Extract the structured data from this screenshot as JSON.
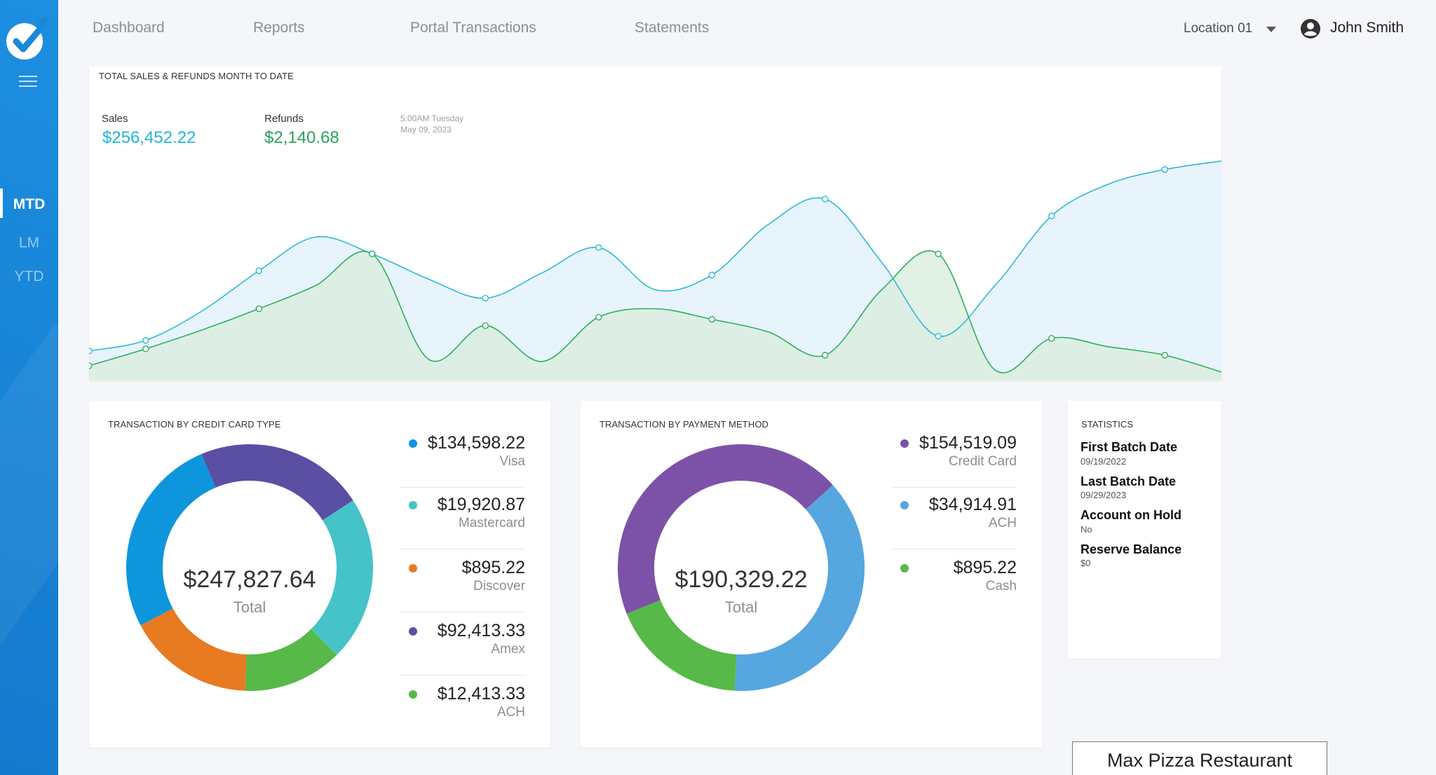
{
  "nav": {
    "items": [
      "Dashboard",
      "Reports",
      "Portal Transactions",
      "Statements"
    ],
    "location": "Location 01",
    "user_name": "John Smith"
  },
  "sidebar": {
    "periods": [
      "MTD",
      "LM",
      "YTD"
    ],
    "active_period": "MTD"
  },
  "sales_card": {
    "title": "TOTAL SALES & REFUNDS MONTH TO DATE",
    "sales_label": "Sales",
    "sales_value": "$256,452.22",
    "refunds_label": "Refunds",
    "refunds_value": "$2,140.68",
    "timestamp_line1": "5:00AM Tuesday",
    "timestamp_line2": "May 09, 2023"
  },
  "chart_data": {
    "type": "area",
    "title": "TOTAL SALES & REFUNDS MONTH TO DATE",
    "xlabel": "",
    "ylabel": "",
    "grid": false,
    "x": [
      0,
      1,
      2,
      3,
      4,
      5,
      6,
      7,
      8,
      9,
      10,
      11,
      12,
      13,
      14,
      15,
      16,
      17,
      18,
      19,
      20
    ],
    "series": [
      {
        "name": "Sales",
        "color": "#2bb9d9",
        "fill": "#e4f2fa",
        "values": [
          14,
          19,
          33,
          52,
          68,
          60,
          48,
          39,
          51,
          63,
          43,
          50,
          74,
          86,
          56,
          21,
          45,
          78,
          93,
          100,
          104
        ]
      },
      {
        "name": "Refunds",
        "color": "#2fae5f",
        "fill": "#d9eedf",
        "values": [
          7,
          15,
          24,
          34,
          45,
          60,
          10,
          26,
          9,
          30,
          34,
          29,
          23,
          12,
          43,
          60,
          5,
          20,
          16,
          12,
          4
        ]
      }
    ],
    "highlight_point": {
      "series": "Sales",
      "index": 8
    }
  },
  "credit_card_card": {
    "title": "TRANSACTION BY CREDIT CARD TYPE",
    "total": "$247,827.64",
    "total_label": "Total",
    "items": [
      {
        "amount": "$134,598.22",
        "label": "Visa",
        "color": "#0e96dc"
      },
      {
        "amount": "$19,920.87",
        "label": "Mastercard",
        "color": "#45c3c8"
      },
      {
        "amount": "$895.22",
        "label": "Discover",
        "color": "#e87a22"
      },
      {
        "amount": "$92,413.33",
        "label": "Amex",
        "color": "#5a4fa2"
      },
      {
        "amount": "$12,413.33",
        "label": "ACH",
        "color": "#57b948"
      }
    ],
    "segments": [
      {
        "name": "Visa",
        "color": "#0e96dc",
        "start": 242,
        "end": 337
      },
      {
        "name": "Amex",
        "color": "#5a4fa2",
        "start": 337,
        "end": 417
      },
      {
        "name": "Mastercard",
        "color": "#45c3c8",
        "start": 417,
        "end": 495
      },
      {
        "name": "ACH",
        "color": "#57b948",
        "start": 495,
        "end": 542
      },
      {
        "name": "Discover",
        "color": "#e87a22",
        "start": 542,
        "end": 602
      }
    ]
  },
  "payment_method_card": {
    "title": "TRANSACTION BY PAYMENT METHOD",
    "total": "$190,329.22",
    "total_label": "Total",
    "items": [
      {
        "amount": "$154,519.09",
        "label": "Credit Card",
        "color": "#7b52a8"
      },
      {
        "amount": "$34,914.91",
        "label": "ACH",
        "color": "#56a6df"
      },
      {
        "amount": "$895.22",
        "label": "Cash",
        "color": "#57b948"
      }
    ],
    "segments": [
      {
        "name": "Credit Card",
        "color": "#7b52a8",
        "start": 248,
        "end": 408
      },
      {
        "name": "ACH",
        "color": "#56a6df",
        "start": 408,
        "end": 543
      },
      {
        "name": "Cash",
        "color": "#57b948",
        "start": 543,
        "end": 608
      }
    ]
  },
  "statistics": {
    "title": "STATISTICS",
    "items": [
      {
        "label": "First Batch Date",
        "value": "09/19/2022"
      },
      {
        "label": "Last Batch Date",
        "value": "09/29/2023"
      },
      {
        "label": "Account on Hold",
        "value": "No"
      },
      {
        "label": "Reserve Balance",
        "value": "$0"
      }
    ]
  },
  "merchant_name": "Max Pizza Restaurant"
}
